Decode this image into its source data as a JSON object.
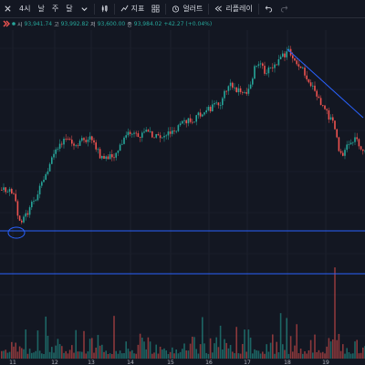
{
  "toolbar": {
    "intervals": [
      "4시",
      "날",
      "주",
      "달"
    ],
    "indicators_label": "지표",
    "alert_label": "얼러트",
    "replay_label": "리플레이"
  },
  "legend": {
    "open_key": "시",
    "open_value": "93,941.74",
    "high_key": "고",
    "high_value": "93,992.82",
    "low_key": "저",
    "low_value": "93,600.00",
    "close_key": "종",
    "close_value": "93,984.02",
    "change": "+42.27 (+0.04%)"
  },
  "colors": {
    "bull": "#26a69a",
    "bear": "#ef5350",
    "line": "#2962ff",
    "bg": "#131722"
  },
  "x_axis": {
    "ticks": [
      "11",
      "12",
      "13",
      "14",
      "15",
      "16",
      "17",
      "18",
      "19"
    ]
  }
}
